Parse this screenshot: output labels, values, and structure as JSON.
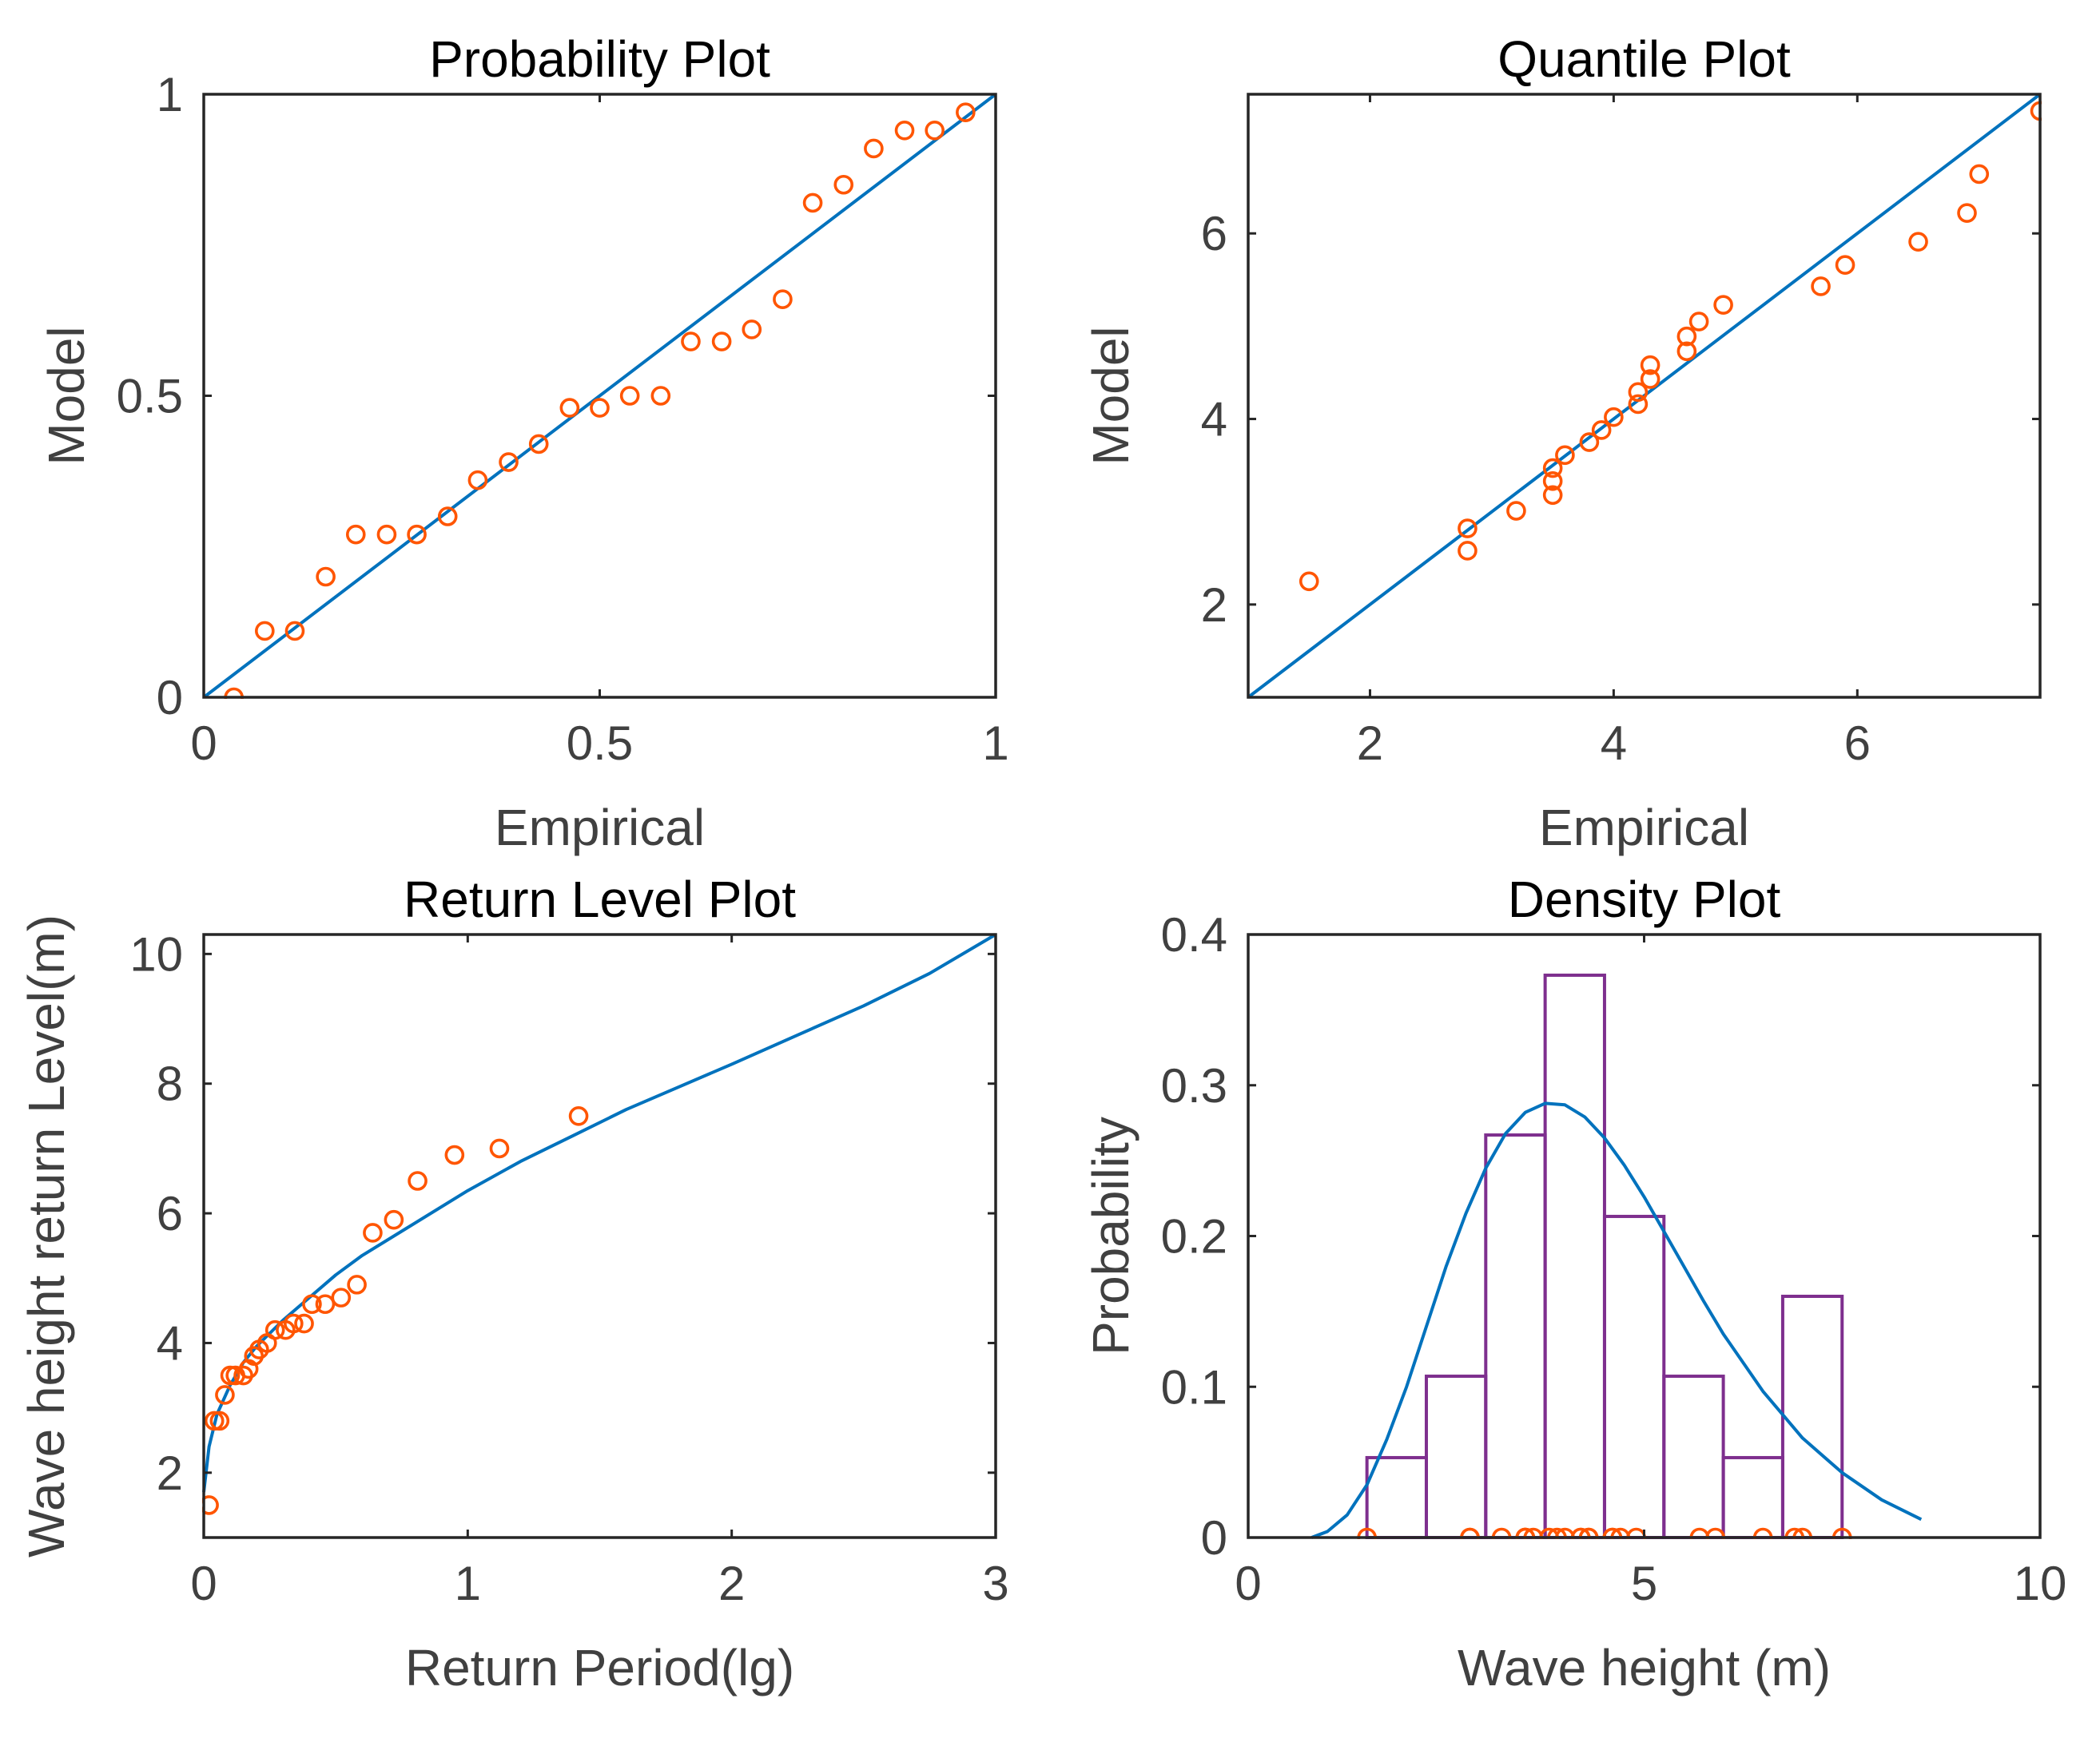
{
  "chart_data": [
    {
      "type": "scatter",
      "title": "Probability Plot",
      "xlabel": "Empirical",
      "ylabel": "Model",
      "xlim": [
        0,
        1
      ],
      "ylim": [
        0,
        1
      ],
      "xticks": [
        0,
        0.5,
        1
      ],
      "yticks": [
        0,
        0.5,
        1
      ],
      "xtick_labels": [
        "0",
        "0.5",
        "1"
      ],
      "ytick_labels": [
        "0",
        "0.5",
        "1"
      ],
      "grid": false,
      "series": [
        {
          "kind": "points",
          "color": "#FF5500",
          "x": [
            0.038,
            0.077,
            0.115,
            0.154,
            0.192,
            0.231,
            0.269,
            0.308,
            0.346,
            0.385,
            0.423,
            0.462,
            0.5,
            0.538,
            0.577,
            0.615,
            0.654,
            0.692,
            0.731,
            0.769,
            0.808,
            0.846,
            0.885,
            0.923,
            0.962
          ],
          "y": [
            0.0,
            0.11,
            0.11,
            0.2,
            0.27,
            0.27,
            0.27,
            0.3,
            0.36,
            0.39,
            0.42,
            0.48,
            0.48,
            0.5,
            0.5,
            0.59,
            0.59,
            0.61,
            0.66,
            0.82,
            0.85,
            0.91,
            0.94,
            0.94,
            0.97
          ]
        },
        {
          "kind": "line",
          "color": "#0072BD",
          "x": [
            0,
            1
          ],
          "y": [
            0,
            1
          ]
        }
      ]
    },
    {
      "type": "scatter",
      "title": "Quantile Plot",
      "xlabel": "Empirical",
      "ylabel": "Model",
      "xlim": [
        1,
        7.5
      ],
      "ylim": [
        1,
        7.5
      ],
      "xticks": [
        2,
        4,
        6
      ],
      "yticks": [
        2,
        4,
        6
      ],
      "xtick_labels": [
        "2",
        "4",
        "6"
      ],
      "ytick_labels": [
        "2",
        "4",
        "6"
      ],
      "grid": false,
      "series": [
        {
          "kind": "points",
          "color": "#FF5500",
          "x": [
            1.5,
            2.8,
            2.8,
            3.2,
            3.5,
            3.5,
            3.5,
            3.6,
            3.8,
            3.9,
            4.0,
            4.2,
            4.2,
            4.3,
            4.3,
            4.6,
            4.6,
            4.7,
            4.9,
            5.7,
            5.9,
            6.5,
            6.9,
            7.0,
            7.5
          ],
          "y": [
            2.25,
            2.58,
            2.82,
            3.01,
            3.18,
            3.33,
            3.47,
            3.61,
            3.75,
            3.88,
            4.02,
            4.16,
            4.29,
            4.43,
            4.58,
            4.73,
            4.89,
            5.05,
            5.23,
            5.43,
            5.66,
            5.91,
            6.22,
            6.64,
            7.32
          ]
        },
        {
          "kind": "line",
          "color": "#0072BD",
          "x": [
            1,
            7.5
          ],
          "y": [
            1,
            7.5
          ]
        }
      ]
    },
    {
      "type": "scatter",
      "title": "Return Level Plot",
      "xlabel": "Return Period(lg)",
      "ylabel": "Wave height return Level(m)",
      "xlim": [
        0,
        3
      ],
      "ylim": [
        1,
        10.3
      ],
      "xticks": [
        0,
        1,
        2,
        3
      ],
      "yticks": [
        2,
        4,
        6,
        8,
        10
      ],
      "xtick_labels": [
        "0",
        "1",
        "2",
        "3"
      ],
      "ytick_labels": [
        "2",
        "4",
        "6",
        "8",
        "10"
      ],
      "grid": false,
      "series": [
        {
          "kind": "points",
          "color": "#FF5500",
          "x": [
            0.02,
            0.04,
            0.06,
            0.08,
            0.1,
            0.12,
            0.15,
            0.17,
            0.19,
            0.21,
            0.24,
            0.27,
            0.31,
            0.34,
            0.38,
            0.41,
            0.46,
            0.52,
            0.58,
            0.64,
            0.72,
            0.81,
            0.95,
            1.12,
            1.42
          ],
          "y": [
            1.5,
            2.8,
            2.8,
            3.2,
            3.5,
            3.5,
            3.5,
            3.6,
            3.8,
            3.9,
            4.0,
            4.2,
            4.2,
            4.3,
            4.3,
            4.6,
            4.6,
            4.7,
            4.9,
            5.7,
            5.9,
            6.5,
            6.9,
            7.0,
            7.5
          ]
        },
        {
          "kind": "line",
          "color": "#0072BD",
          "x": [
            0.0,
            0.02,
            0.05,
            0.1,
            0.15,
            0.2,
            0.3,
            0.4,
            0.5,
            0.6,
            0.8,
            1.0,
            1.2,
            1.4,
            1.6,
            1.8,
            2.0,
            2.25,
            2.5,
            2.75,
            3.0
          ],
          "y": [
            1.7,
            2.4,
            2.9,
            3.35,
            3.7,
            3.95,
            4.35,
            4.7,
            5.05,
            5.35,
            5.85,
            6.35,
            6.8,
            7.2,
            7.6,
            7.95,
            8.3,
            8.75,
            9.2,
            9.7,
            10.3
          ]
        }
      ]
    },
    {
      "type": "bar",
      "title": "Density Plot",
      "xlabel": "Wave height (m)",
      "ylabel": "Probability",
      "xlim": [
        0,
        10
      ],
      "ylim": [
        0,
        0.4
      ],
      "xticks": [
        0,
        5,
        10
      ],
      "yticks": [
        0,
        0.1,
        0.2,
        0.3,
        0.4
      ],
      "xtick_labels": [
        "0",
        "5",
        "10"
      ],
      "ytick_labels": [
        "0",
        "0.1",
        "0.2",
        "0.3",
        "0.4"
      ],
      "grid": false,
      "histogram": {
        "color": "#7E2F8E",
        "bin_edges": [
          1.5,
          2.25,
          3.0,
          3.75,
          4.5,
          5.25,
          6.0,
          6.75,
          7.5
        ],
        "values": [
          0.053,
          0.107,
          0.267,
          0.373,
          0.213,
          0.107,
          0.053,
          0.16
        ]
      },
      "series": [
        {
          "kind": "line",
          "color": "#0072BD",
          "x": [
            0.8,
            1.0,
            1.25,
            1.5,
            1.75,
            2.0,
            2.25,
            2.5,
            2.75,
            3.0,
            3.25,
            3.5,
            3.75,
            4.0,
            4.25,
            4.5,
            4.75,
            5.0,
            5.25,
            5.5,
            5.75,
            6.0,
            6.5,
            7.0,
            7.5,
            8.0,
            8.5
          ],
          "y": [
            0.0,
            0.004,
            0.015,
            0.035,
            0.065,
            0.1,
            0.14,
            0.18,
            0.215,
            0.245,
            0.268,
            0.282,
            0.288,
            0.287,
            0.279,
            0.265,
            0.247,
            0.226,
            0.203,
            0.18,
            0.157,
            0.135,
            0.097,
            0.066,
            0.043,
            0.025,
            0.012
          ]
        },
        {
          "kind": "points",
          "color": "#FF5500",
          "x": [
            1.5,
            2.8,
            2.8,
            3.2,
            3.5,
            3.5,
            3.5,
            3.6,
            3.8,
            3.9,
            4.0,
            4.2,
            4.2,
            4.3,
            4.3,
            4.6,
            4.6,
            4.7,
            4.9,
            5.7,
            5.9,
            6.5,
            6.9,
            7.0,
            7.5
          ],
          "y": [
            0,
            0,
            0,
            0,
            0,
            0,
            0,
            0,
            0,
            0,
            0,
            0,
            0,
            0,
            0,
            0,
            0,
            0,
            0,
            0,
            0,
            0,
            0,
            0,
            0
          ]
        }
      ]
    }
  ]
}
